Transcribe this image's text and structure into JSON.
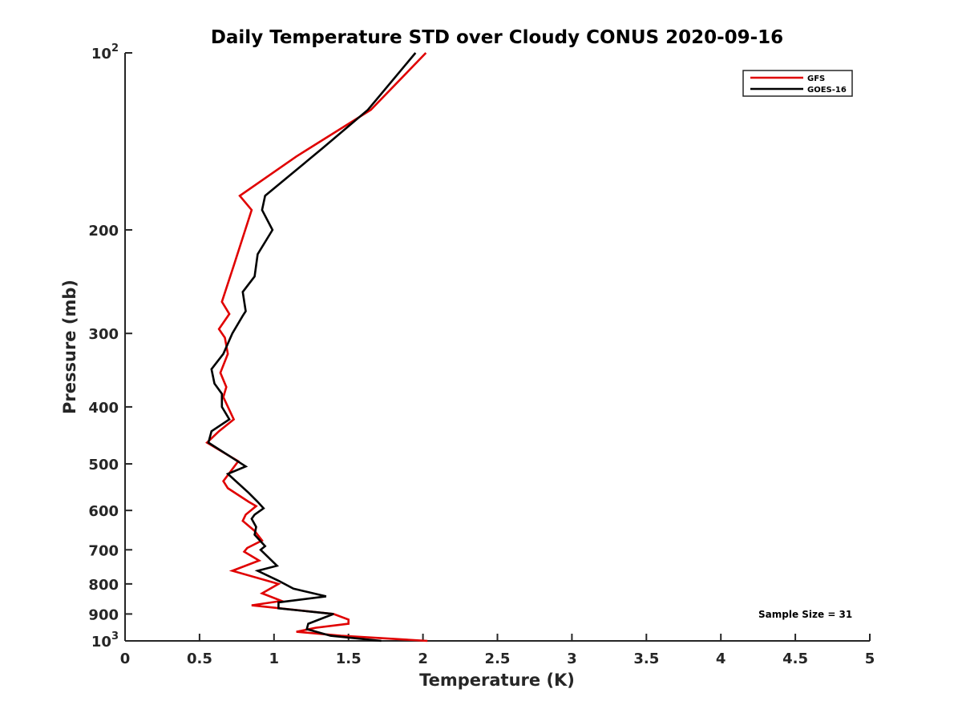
{
  "chart_data": {
    "type": "line",
    "title": "Daily Temperature STD over Cloudy CONUS 2020-09-16",
    "xlabel": "Temperature (K)",
    "ylabel": "Pressure (mb)",
    "xlim": [
      0,
      5
    ],
    "ylim": [
      100,
      1000
    ],
    "yscale": "log",
    "y_reversed": true,
    "grid": false,
    "legend_position": "top-right",
    "xticks": [
      "0",
      "0.5",
      "1",
      "1.5",
      "2",
      "2.5",
      "3",
      "3.5",
      "4",
      "4.5",
      "5"
    ],
    "yticks": [
      {
        "value": 100,
        "base": "10",
        "exp": "2"
      },
      {
        "value": 200,
        "label": "200"
      },
      {
        "value": 300,
        "label": "300"
      },
      {
        "value": 400,
        "label": "400"
      },
      {
        "value": 500,
        "label": "500"
      },
      {
        "value": 600,
        "label": "600"
      },
      {
        "value": 700,
        "label": "700"
      },
      {
        "value": 800,
        "label": "800"
      },
      {
        "value": 900,
        "label": "900"
      },
      {
        "value": 1000,
        "base": "10",
        "exp": "3"
      }
    ],
    "annotation": "Sample Size = 31",
    "series": [
      {
        "name": "GFS",
        "color": "#e00000",
        "points": [
          [
            2.02,
            100
          ],
          [
            1.65,
            125
          ],
          [
            1.15,
            150
          ],
          [
            0.77,
            175
          ],
          [
            0.85,
            185
          ],
          [
            0.73,
            230
          ],
          [
            0.65,
            265
          ],
          [
            0.7,
            278
          ],
          [
            0.63,
            295
          ],
          [
            0.67,
            305
          ],
          [
            0.69,
            325
          ],
          [
            0.64,
            350
          ],
          [
            0.68,
            370
          ],
          [
            0.66,
            385
          ],
          [
            0.73,
            420
          ],
          [
            0.63,
            440
          ],
          [
            0.55,
            460
          ],
          [
            0.76,
            495
          ],
          [
            0.66,
            535
          ],
          [
            0.69,
            550
          ],
          [
            0.83,
            580
          ],
          [
            0.88,
            590
          ],
          [
            0.81,
            610
          ],
          [
            0.79,
            625
          ],
          [
            0.87,
            650
          ],
          [
            0.92,
            675
          ],
          [
            0.82,
            695
          ],
          [
            0.8,
            705
          ],
          [
            0.9,
            730
          ],
          [
            0.72,
            760
          ],
          [
            1.03,
            800
          ],
          [
            0.92,
            830
          ],
          [
            1.05,
            855
          ],
          [
            0.85,
            870
          ],
          [
            1.4,
            900
          ],
          [
            1.5,
            920
          ],
          [
            1.5,
            935
          ],
          [
            1.28,
            950
          ],
          [
            1.15,
            965
          ],
          [
            1.45,
            980
          ],
          [
            2.03,
            1000
          ]
        ]
      },
      {
        "name": "GOES-16",
        "color": "#000000",
        "points": [
          [
            1.95,
            100
          ],
          [
            1.63,
            125
          ],
          [
            1.33,
            145
          ],
          [
            0.94,
            175
          ],
          [
            0.92,
            185
          ],
          [
            0.99,
            200
          ],
          [
            0.89,
            220
          ],
          [
            0.87,
            240
          ],
          [
            0.79,
            255
          ],
          [
            0.81,
            275
          ],
          [
            0.79,
            280
          ],
          [
            0.72,
            300
          ],
          [
            0.66,
            325
          ],
          [
            0.58,
            345
          ],
          [
            0.6,
            365
          ],
          [
            0.65,
            380
          ],
          [
            0.65,
            400
          ],
          [
            0.7,
            420
          ],
          [
            0.58,
            440
          ],
          [
            0.56,
            460
          ],
          [
            0.81,
            505
          ],
          [
            0.69,
            520
          ],
          [
            0.83,
            560
          ],
          [
            0.89,
            580
          ],
          [
            0.93,
            595
          ],
          [
            0.87,
            610
          ],
          [
            0.85,
            620
          ],
          [
            0.88,
            640
          ],
          [
            0.87,
            660
          ],
          [
            0.94,
            690
          ],
          [
            0.91,
            700
          ],
          [
            1.02,
            745
          ],
          [
            0.89,
            760
          ],
          [
            1.03,
            790
          ],
          [
            1.13,
            815
          ],
          [
            1.35,
            840
          ],
          [
            1.03,
            860
          ],
          [
            1.03,
            880
          ],
          [
            1.4,
            900
          ],
          [
            1.23,
            935
          ],
          [
            1.22,
            955
          ],
          [
            1.38,
            980
          ],
          [
            1.72,
            1000
          ]
        ]
      }
    ]
  }
}
